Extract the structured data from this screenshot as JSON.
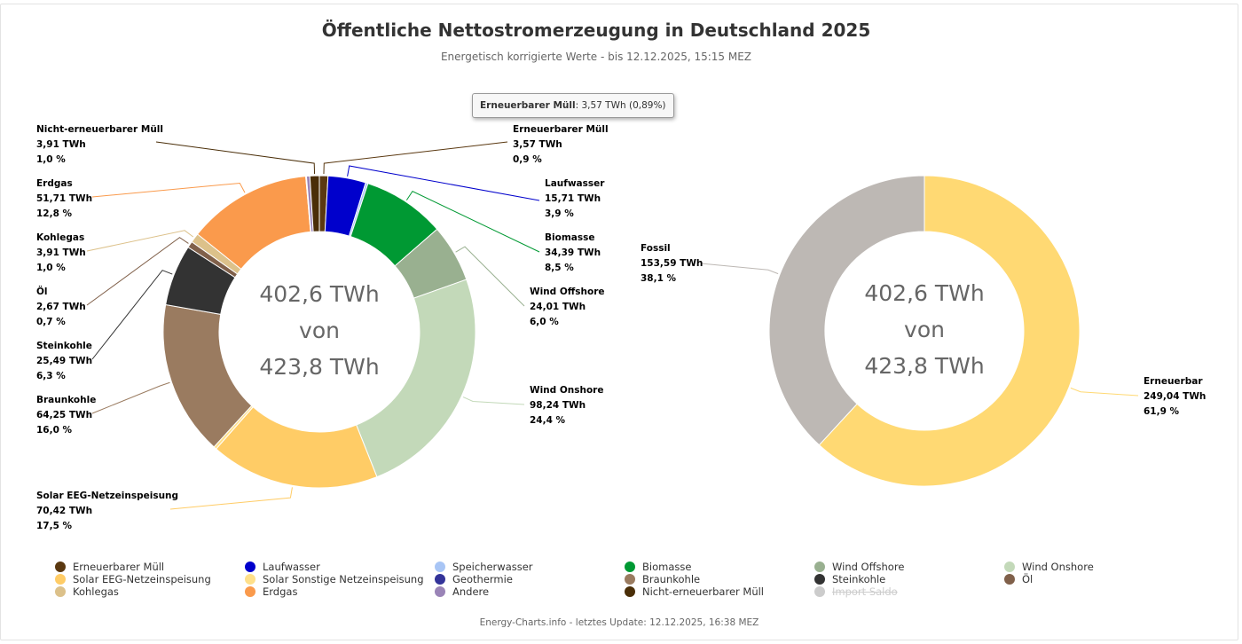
{
  "title": "Öffentliche Nettostromerzeugung in Deutschland 2025",
  "subtitle": "Energetisch korrigierte Werte - bis 12.12.2025, 15:15 MEZ",
  "tooltip": {
    "name": "Erneuerbarer Müll",
    "value": ": 3,57 TWh (0,89%)"
  },
  "footer": "Energy-Charts.info - letztes Update: 12.12.2025, 16:38 MEZ",
  "chart_data": [
    {
      "type": "pie",
      "center_label": [
        "402,6 TWh",
        "von",
        "423,8 TWh"
      ],
      "slices": [
        {
          "name": "Erneuerbarer Müll",
          "value": 3.57,
          "color": "#5a3810",
          "label": [
            "Erneuerbarer Müll",
            "3,57 TWh",
            "0,9 %"
          ]
        },
        {
          "name": "Laufwasser",
          "value": 15.71,
          "color": "#0000cc",
          "label": [
            "Laufwasser",
            "15,71 TWh",
            "3,9 %"
          ]
        },
        {
          "name": "Speicherwasser",
          "value": 1.0,
          "color": "#a8c5f5",
          "label": null
        },
        {
          "name": "Biomasse",
          "value": 34.39,
          "color": "#009933",
          "label": [
            "Biomasse",
            "34,39 TWh",
            "8,5 %"
          ]
        },
        {
          "name": "Wind Offshore",
          "value": 24.01,
          "color": "#99b090",
          "label": [
            "Wind Offshore",
            "24,01 TWh",
            "6,0 %"
          ]
        },
        {
          "name": "Wind Onshore",
          "value": 98.24,
          "color": "#c3d9b9",
          "label": [
            "Wind Onshore",
            "98,24 TWh",
            "24,4 %"
          ]
        },
        {
          "name": "Solar EEG-Netzeinspeisung",
          "value": 70.42,
          "color": "#ffcc66",
          "label": [
            "Solar EEG-Netzeinspeisung",
            "70,42 TWh",
            "17,5 %"
          ]
        },
        {
          "name": "Solar Sonstige Netzeinspeisung",
          "value": 1.2,
          "color": "#ffe08a",
          "label": null
        },
        {
          "name": "Braunkohle",
          "value": 64.25,
          "color": "#9a7b60",
          "label": [
            "Braunkohle",
            "64,25 TWh",
            "16,0 %"
          ]
        },
        {
          "name": "Steinkohle",
          "value": 25.49,
          "color": "#333333",
          "label": [
            "Steinkohle",
            "25,49 TWh",
            "6,3 %"
          ]
        },
        {
          "name": "Öl",
          "value": 2.67,
          "color": "#80604a",
          "label": [
            "Öl",
            "2,67 TWh",
            "0,7 %"
          ]
        },
        {
          "name": "Kohlegas",
          "value": 3.91,
          "color": "#dcc18a",
          "label": [
            "Kohlegas",
            "3,91 TWh",
            "1,0 %"
          ]
        },
        {
          "name": "Erdgas",
          "value": 51.71,
          "color": "#fa9a4c",
          "label": [
            "Erdgas",
            "51,71 TWh",
            "12,8 %"
          ]
        },
        {
          "name": "Geothermie",
          "value": 0.3,
          "color": "#333399",
          "label": null
        },
        {
          "name": "Andere",
          "value": 1.4,
          "color": "#9a84b7",
          "label": null
        },
        {
          "name": "Nicht-erneuerbarer Müll",
          "value": 3.91,
          "color": "#4a2e08",
          "label": [
            "Nicht-erneuerbarer Müll",
            "3,91 TWh",
            "1,0 %"
          ]
        }
      ]
    },
    {
      "type": "pie",
      "center_label": [
        "402,6 TWh",
        "von",
        "423,8 TWh"
      ],
      "slices": [
        {
          "name": "Erneuerbar",
          "value": 249.04,
          "color": "#ffd973",
          "label": [
            "Erneuerbar",
            "249,04 TWh",
            "61,9 %"
          ]
        },
        {
          "name": "Fossil",
          "value": 153.59,
          "color": "#bdb8b4",
          "label": [
            "Fossil",
            "153,59 TWh",
            "38,1 %"
          ]
        }
      ]
    }
  ],
  "legend": [
    {
      "label": "Erneuerbarer Müll",
      "color": "#5a3810",
      "hidden": false
    },
    {
      "label": "Laufwasser",
      "color": "#0000cc",
      "hidden": false
    },
    {
      "label": "Speicherwasser",
      "color": "#a8c5f5",
      "hidden": false
    },
    {
      "label": "Biomasse",
      "color": "#009933",
      "hidden": false
    },
    {
      "label": "Wind Offshore",
      "color": "#99b090",
      "hidden": false
    },
    {
      "label": "Wind Onshore",
      "color": "#c3d9b9",
      "hidden": false
    },
    {
      "label": "Solar EEG-Netzeinspeisung",
      "color": "#ffcc66",
      "hidden": false
    },
    {
      "label": "Solar Sonstige Netzeinspeisung",
      "color": "#ffe08a",
      "hidden": false
    },
    {
      "label": "Geothermie",
      "color": "#333399",
      "hidden": false
    },
    {
      "label": "Braunkohle",
      "color": "#9a7b60",
      "hidden": false
    },
    {
      "label": "Steinkohle",
      "color": "#333333",
      "hidden": false
    },
    {
      "label": "Öl",
      "color": "#80604a",
      "hidden": false
    },
    {
      "label": "Kohlegas",
      "color": "#dcc18a",
      "hidden": false
    },
    {
      "label": "Erdgas",
      "color": "#fa9a4c",
      "hidden": false
    },
    {
      "label": "Andere",
      "color": "#9a84b7",
      "hidden": false
    },
    {
      "label": "Nicht-erneuerbarer Müll",
      "color": "#4a2e08",
      "hidden": false
    },
    {
      "label": "Import Saldo",
      "color": "#cccccc",
      "hidden": true
    }
  ]
}
